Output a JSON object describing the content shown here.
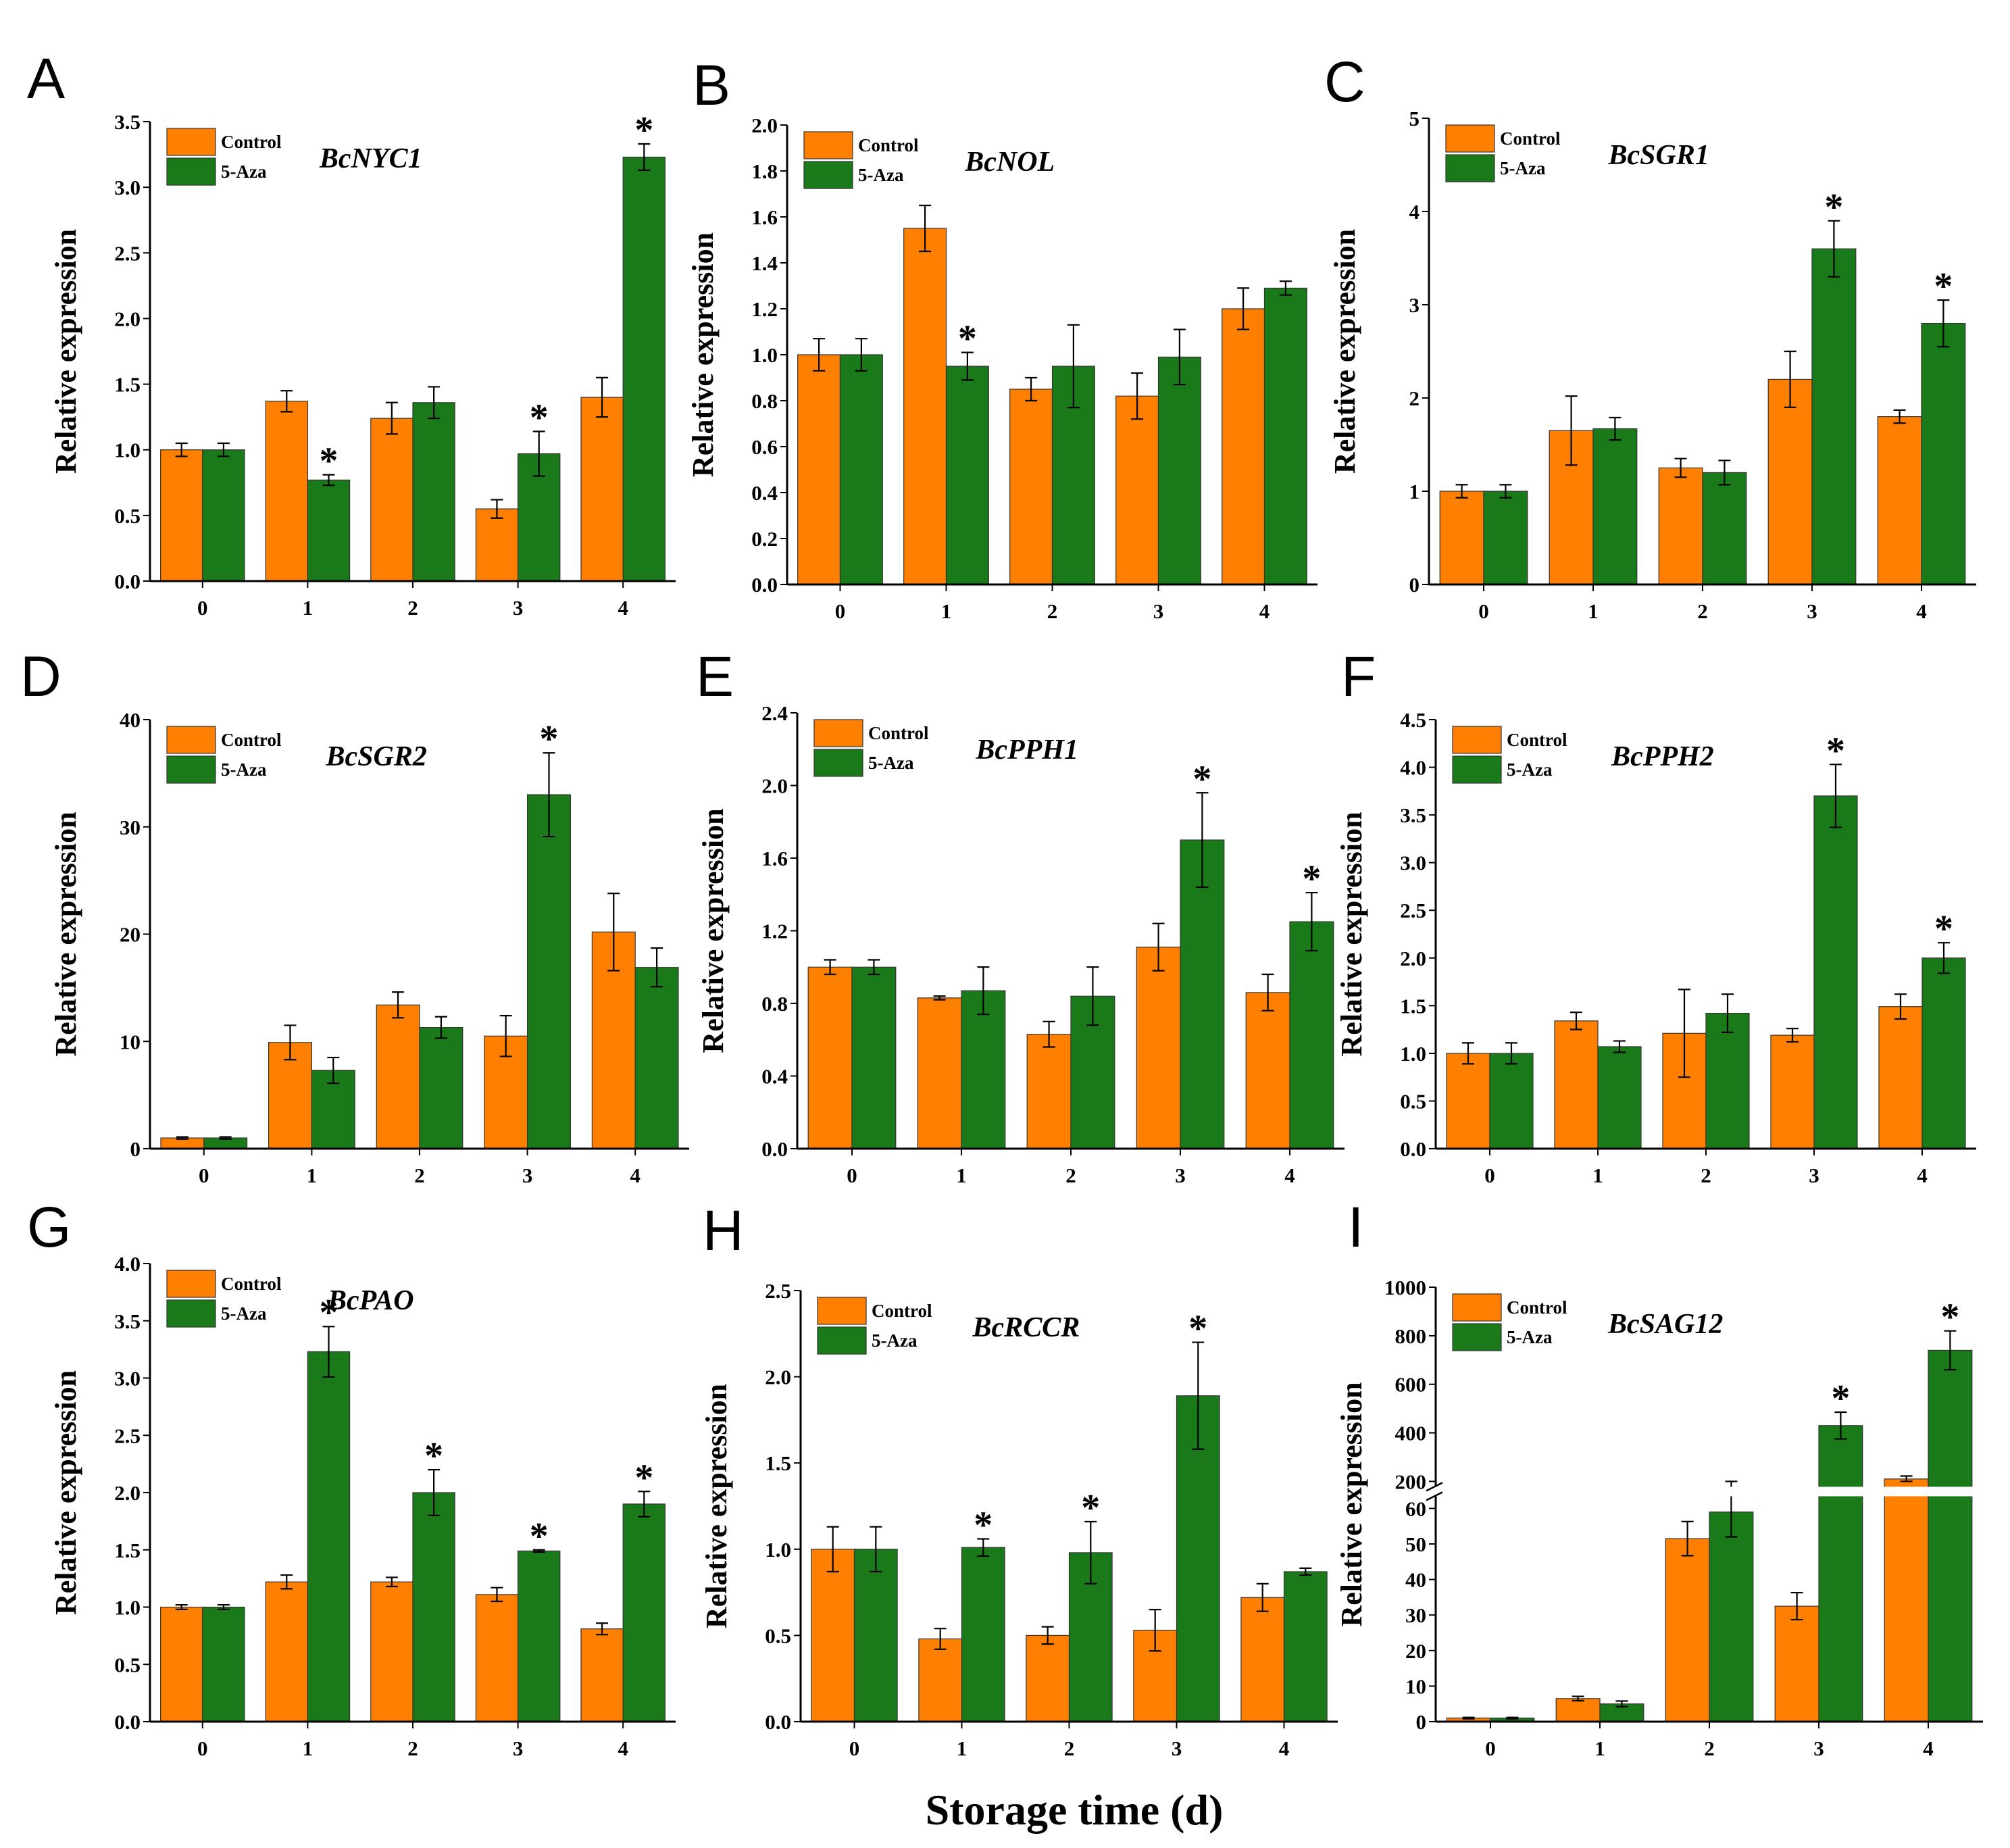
{
  "x_axis_title": "Storage time (d)",
  "colors": {
    "control": "#FF8000",
    "aza": "#1A7A1A",
    "axis": "#000000"
  },
  "chart_data": [
    {
      "type": "bar",
      "panel": "A",
      "title": "BcNYC1",
      "ylabel": "Relative expression",
      "categories": [
        "0",
        "1",
        "2",
        "3",
        "4"
      ],
      "ylim": [
        0,
        3.5
      ],
      "yticks": [
        "0.0",
        "0.5",
        "1.0",
        "1.5",
        "2.0",
        "2.5",
        "3.0",
        "3.5"
      ],
      "series": [
        {
          "name": "Control",
          "values": [
            1.0,
            1.37,
            1.24,
            0.55,
            1.4
          ],
          "errors": [
            0.05,
            0.08,
            0.12,
            0.07,
            0.15
          ]
        },
        {
          "name": "5-Aza",
          "values": [
            1.0,
            0.77,
            1.36,
            0.97,
            3.23
          ],
          "errors": [
            0.05,
            0.04,
            0.12,
            0.17,
            0.1
          ]
        }
      ],
      "significance": [
        {
          "category": "1",
          "series": "5-Aza",
          "label": "*"
        },
        {
          "category": "3",
          "series": "5-Aza",
          "label": "*"
        },
        {
          "category": "4",
          "series": "5-Aza",
          "label": "*"
        }
      ]
    },
    {
      "type": "bar",
      "panel": "B",
      "title": "BcNOL",
      "ylabel": "Relative expression",
      "categories": [
        "0",
        "1",
        "2",
        "3",
        "4"
      ],
      "ylim": [
        0,
        2.0
      ],
      "yticks": [
        "0.0",
        "0.2",
        "0.4",
        "0.6",
        "0.8",
        "1.0",
        "1.2",
        "1.4",
        "1.6",
        "1.8",
        "2.0"
      ],
      "series": [
        {
          "name": "Control",
          "values": [
            1.0,
            1.55,
            0.85,
            0.82,
            1.2
          ],
          "errors": [
            0.07,
            0.1,
            0.05,
            0.1,
            0.09
          ]
        },
        {
          "name": "5-Aza",
          "values": [
            1.0,
            0.95,
            0.95,
            0.99,
            1.29
          ],
          "errors": [
            0.07,
            0.06,
            0.18,
            0.12,
            0.03
          ]
        }
      ],
      "significance": [
        {
          "category": "1",
          "series": "5-Aza",
          "label": "*"
        }
      ]
    },
    {
      "type": "bar",
      "panel": "C",
      "title": "BcSGR1",
      "ylabel": "Relative expression",
      "categories": [
        "0",
        "1",
        "2",
        "3",
        "4"
      ],
      "ylim": [
        0,
        5
      ],
      "yticks": [
        "0",
        "1",
        "2",
        "3",
        "4",
        "5"
      ],
      "series": [
        {
          "name": "Control",
          "values": [
            1.0,
            1.65,
            1.25,
            2.2,
            1.8
          ],
          "errors": [
            0.07,
            0.37,
            0.1,
            0.3,
            0.07
          ]
        },
        {
          "name": "5-Aza",
          "values": [
            1.0,
            1.67,
            1.2,
            3.6,
            2.8
          ],
          "errors": [
            0.07,
            0.12,
            0.13,
            0.3,
            0.25
          ]
        }
      ],
      "significance": [
        {
          "category": "3",
          "series": "5-Aza",
          "label": "*"
        },
        {
          "category": "4",
          "series": "5-Aza",
          "label": "*"
        }
      ]
    },
    {
      "type": "bar",
      "panel": "D",
      "title": "BcSGR2",
      "ylabel": "Relative expression",
      "categories": [
        "0",
        "1",
        "2",
        "3",
        "4"
      ],
      "ylim": [
        0,
        40
      ],
      "yticks": [
        "0",
        "10",
        "20",
        "30",
        "40"
      ],
      "series": [
        {
          "name": "Control",
          "values": [
            1.0,
            9.9,
            13.4,
            10.5,
            20.2
          ],
          "errors": [
            0.1,
            1.6,
            1.2,
            1.9,
            3.6
          ]
        },
        {
          "name": "5-Aza",
          "values": [
            1.0,
            7.3,
            11.3,
            33.0,
            16.9
          ],
          "errors": [
            0.1,
            1.2,
            1.0,
            3.9,
            1.8
          ]
        }
      ],
      "significance": [
        {
          "category": "3",
          "series": "5-Aza",
          "label": "*"
        }
      ]
    },
    {
      "type": "bar",
      "panel": "E",
      "title": "BcPPH1",
      "ylabel": "Relative expression",
      "categories": [
        "0",
        "1",
        "2",
        "3",
        "4"
      ],
      "ylim": [
        0,
        2.4
      ],
      "yticks": [
        "0.0",
        "0.4",
        "0.8",
        "1.2",
        "1.6",
        "2.0",
        "2.4"
      ],
      "series": [
        {
          "name": "Control",
          "values": [
            1.0,
            0.83,
            0.63,
            1.11,
            0.86
          ],
          "errors": [
            0.04,
            0.01,
            0.07,
            0.13,
            0.1
          ]
        },
        {
          "name": "5-Aza",
          "values": [
            1.0,
            0.87,
            0.84,
            1.7,
            1.25
          ],
          "errors": [
            0.04,
            0.13,
            0.16,
            0.26,
            0.16
          ]
        }
      ],
      "significance": [
        {
          "category": "3",
          "series": "5-Aza",
          "label": "*"
        },
        {
          "category": "4",
          "series": "5-Aza",
          "label": "*"
        }
      ]
    },
    {
      "type": "bar",
      "panel": "F",
      "title": "BcPPH2",
      "ylabel": "Relative expression",
      "categories": [
        "0",
        "1",
        "2",
        "3",
        "4"
      ],
      "ylim": [
        0,
        4.5
      ],
      "yticks": [
        "0.0",
        "0.5",
        "1.0",
        "1.5",
        "2.0",
        "2.5",
        "3.0",
        "3.5",
        "4.0",
        "4.5"
      ],
      "series": [
        {
          "name": "Control",
          "values": [
            1.0,
            1.34,
            1.21,
            1.19,
            1.49
          ],
          "errors": [
            0.11,
            0.09,
            0.46,
            0.07,
            0.13
          ]
        },
        {
          "name": "5-Aza",
          "values": [
            1.0,
            1.07,
            1.42,
            3.7,
            2.0
          ],
          "errors": [
            0.11,
            0.06,
            0.2,
            0.33,
            0.16
          ]
        }
      ],
      "significance": [
        {
          "category": "3",
          "series": "5-Aza",
          "label": "*"
        },
        {
          "category": "4",
          "series": "5-Aza",
          "label": "*"
        }
      ]
    },
    {
      "type": "bar",
      "panel": "G",
      "title": "BcPAO",
      "ylabel": "Relative expression",
      "categories": [
        "0",
        "1",
        "2",
        "3",
        "4"
      ],
      "ylim": [
        0,
        4.0
      ],
      "yticks": [
        "0.0",
        "0.5",
        "1.0",
        "1.5",
        "2.0",
        "2.5",
        "3.0",
        "3.5",
        "4.0"
      ],
      "series": [
        {
          "name": "Control",
          "values": [
            1.0,
            1.22,
            1.22,
            1.11,
            0.81
          ],
          "errors": [
            0.02,
            0.06,
            0.04,
            0.06,
            0.05
          ]
        },
        {
          "name": "5-Aza",
          "values": [
            1.0,
            3.23,
            2.0,
            1.49,
            1.9
          ],
          "errors": [
            0.02,
            0.22,
            0.2,
            0.01,
            0.11
          ]
        }
      ],
      "significance": [
        {
          "category": "1",
          "series": "5-Aza",
          "label": "*"
        },
        {
          "category": "2",
          "series": "5-Aza",
          "label": "*"
        },
        {
          "category": "3",
          "series": "5-Aza",
          "label": "*"
        },
        {
          "category": "4",
          "series": "5-Aza",
          "label": "*"
        }
      ]
    },
    {
      "type": "bar",
      "panel": "H",
      "title": "BcRCCR",
      "ylabel": "Relative expression",
      "categories": [
        "0",
        "1",
        "2",
        "3",
        "4"
      ],
      "ylim": [
        0,
        2.5
      ],
      "yticks": [
        "0.0",
        "0.5",
        "1.0",
        "1.5",
        "2.0",
        "2.5"
      ],
      "series": [
        {
          "name": "Control",
          "values": [
            1.0,
            0.48,
            0.5,
            0.53,
            0.72
          ],
          "errors": [
            0.13,
            0.06,
            0.05,
            0.12,
            0.08
          ]
        },
        {
          "name": "5-Aza",
          "values": [
            1.0,
            1.01,
            0.98,
            1.89,
            0.87
          ],
          "errors": [
            0.13,
            0.05,
            0.18,
            0.31,
            0.02
          ]
        }
      ],
      "significance": [
        {
          "category": "1",
          "series": "5-Aza",
          "label": "*"
        },
        {
          "category": "2",
          "series": "5-Aza",
          "label": "*"
        },
        {
          "category": "3",
          "series": "5-Aza",
          "label": "*"
        }
      ]
    },
    {
      "type": "bar",
      "panel": "I",
      "title": "BcSAG12",
      "ylabel": "Relative expression",
      "categories": [
        "0",
        "1",
        "2",
        "3",
        "4"
      ],
      "broken_axis": {
        "lower": [
          0,
          60
        ],
        "upper": [
          200,
          1000
        ]
      },
      "yticks": [
        "0",
        "10",
        "20",
        "30",
        "40",
        "50",
        "60",
        "200",
        "400",
        "600",
        "800",
        "1000"
      ],
      "series": [
        {
          "name": "Control",
          "values": [
            1.0,
            6.5,
            51.5,
            32.5,
            210
          ],
          "errors": [
            0.2,
            0.6,
            4.8,
            3.8,
            12
          ]
        },
        {
          "name": "5-Aza",
          "values": [
            1.0,
            5.0,
            59.0,
            430,
            740
          ],
          "errors": [
            0.2,
            0.8,
            7.0,
            55,
            80
          ]
        }
      ],
      "significance": [
        {
          "category": "3",
          "series": "5-Aza",
          "label": "*"
        },
        {
          "category": "4",
          "series": "5-Aza",
          "label": "*"
        }
      ]
    }
  ]
}
